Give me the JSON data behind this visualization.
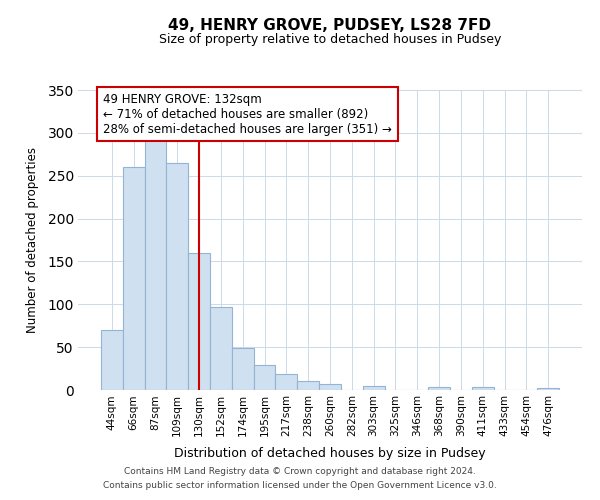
{
  "title": "49, HENRY GROVE, PUDSEY, LS28 7FD",
  "subtitle": "Size of property relative to detached houses in Pudsey",
  "xlabel": "Distribution of detached houses by size in Pudsey",
  "ylabel": "Number of detached properties",
  "bar_labels": [
    "44sqm",
    "66sqm",
    "87sqm",
    "109sqm",
    "130sqm",
    "152sqm",
    "174sqm",
    "195sqm",
    "217sqm",
    "238sqm",
    "260sqm",
    "282sqm",
    "303sqm",
    "325sqm",
    "346sqm",
    "368sqm",
    "390sqm",
    "411sqm",
    "433sqm",
    "454sqm",
    "476sqm"
  ],
  "bar_values": [
    70,
    260,
    293,
    265,
    160,
    97,
    49,
    29,
    19,
    10,
    7,
    0,
    5,
    0,
    0,
    3,
    0,
    3,
    0,
    0,
    2
  ],
  "bar_color": "#cfe0f0",
  "bar_edge_color": "#94b4d4",
  "vline_x": 4,
  "vline_color": "#cc0000",
  "annotation_line1": "49 HENRY GROVE: 132sqm",
  "annotation_line2": "← 71% of detached houses are smaller (892)",
  "annotation_line3": "28% of semi-detached houses are larger (351) →",
  "annotation_box_color": "#ffffff",
  "annotation_box_edge": "#cc0000",
  "ylim": [
    0,
    350
  ],
  "yticks": [
    0,
    50,
    100,
    150,
    200,
    250,
    300,
    350
  ],
  "footer_line1": "Contains HM Land Registry data © Crown copyright and database right 2024.",
  "footer_line2": "Contains public sector information licensed under the Open Government Licence v3.0.",
  "bg_color": "#ffffff",
  "grid_color": "#ccd9ea"
}
